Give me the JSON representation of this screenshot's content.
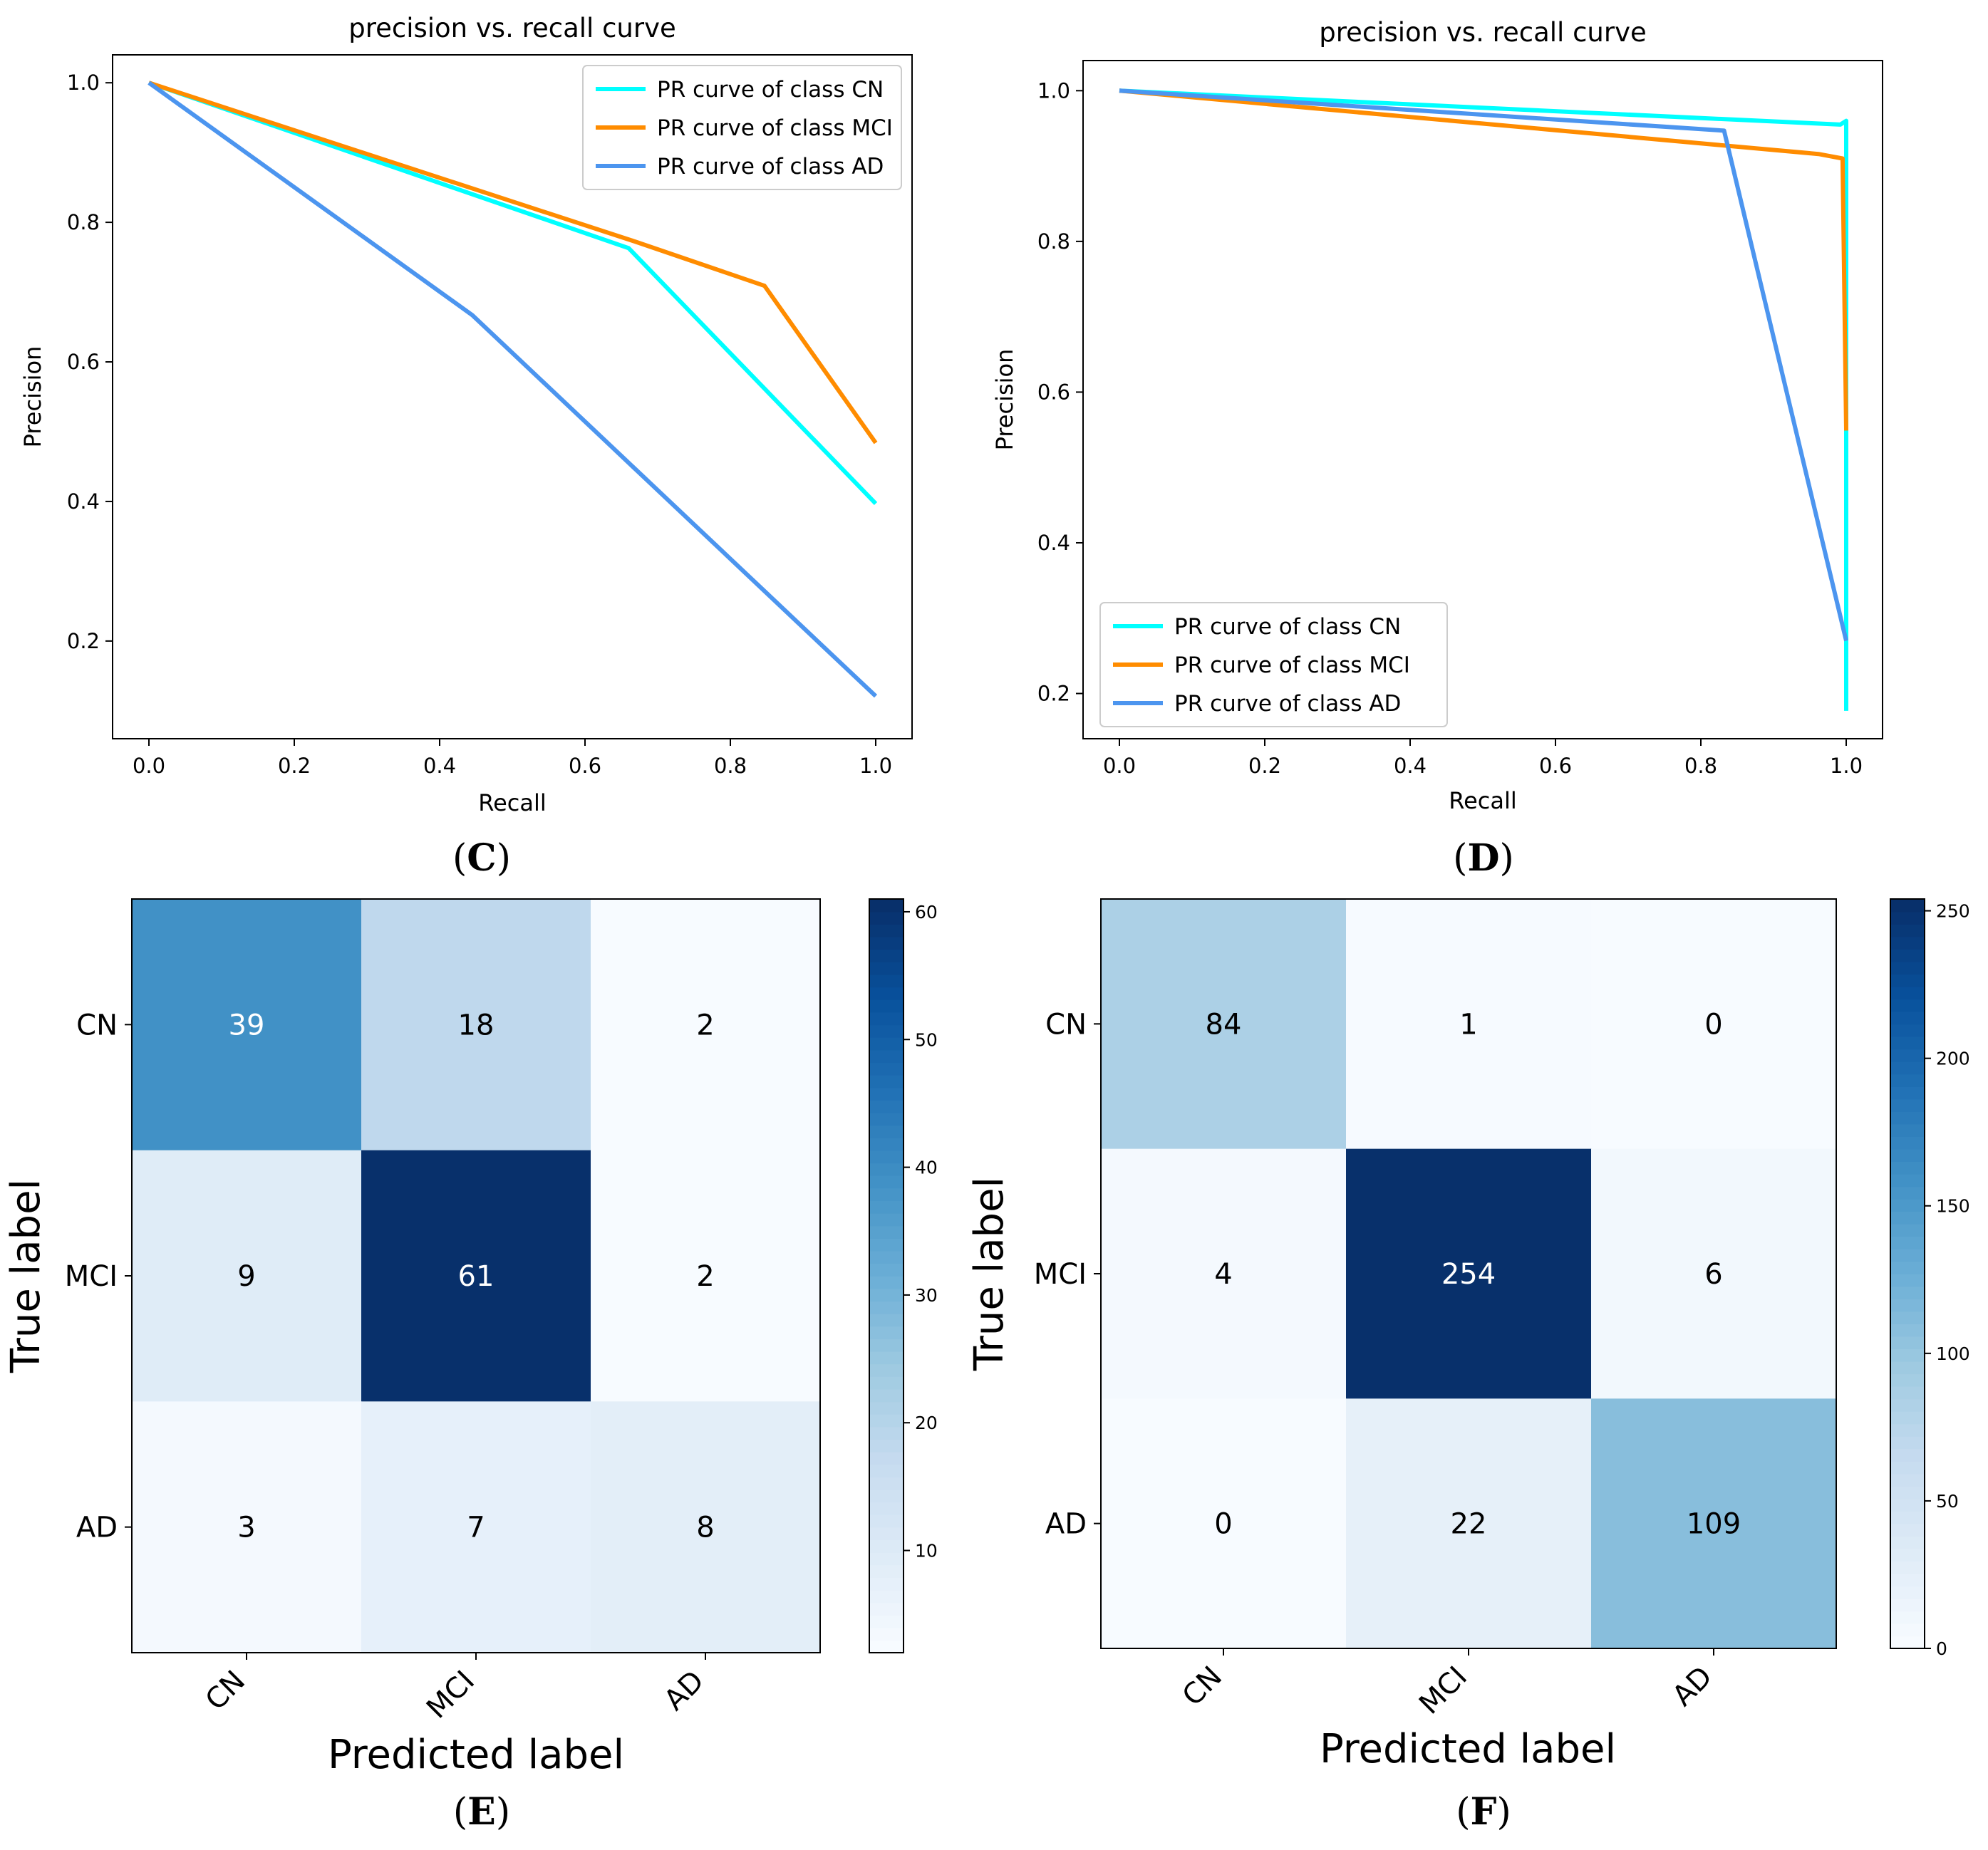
{
  "panels": {
    "C": {
      "caption_open": "(",
      "caption_letter": "C",
      "caption_close": ")"
    },
    "D": {
      "caption_open": "(",
      "caption_letter": "D",
      "caption_close": ")"
    },
    "E": {
      "caption_open": "(",
      "caption_letter": "E",
      "caption_close": ")"
    },
    "F": {
      "caption_open": "(",
      "caption_letter": "F",
      "caption_close": ")"
    }
  },
  "chart_data": [
    {
      "id": "C",
      "type": "line",
      "title": "precision vs. recall curve",
      "xlabel": "Recall",
      "ylabel": "Precision",
      "xlim": [
        -0.05,
        1.05
      ],
      "ylim": [
        0.06,
        1.04
      ],
      "xticks": [
        0.0,
        0.2,
        0.4,
        0.6,
        0.8,
        1.0
      ],
      "xtick_labels": [
        "0.0",
        "0.2",
        "0.4",
        "0.6",
        "0.8",
        "1.0"
      ],
      "yticks": [
        0.2,
        0.4,
        0.6,
        0.8,
        1.0
      ],
      "ytick_labels": [
        "0.2",
        "0.4",
        "0.6",
        "0.8",
        "1.0"
      ],
      "legend_position": "top-right",
      "series": [
        {
          "name": "PR curve of class CN",
          "color": "#00ffff",
          "x": [
            0.0,
            0.66,
            1.0
          ],
          "y": [
            1.0,
            0.763,
            0.397
          ]
        },
        {
          "name": "PR curve of class MCI",
          "color": "#ff8c00",
          "x": [
            0.0,
            0.67,
            0.847,
            1.0
          ],
          "y": [
            1.0,
            0.772,
            0.709,
            0.484
          ]
        },
        {
          "name": "PR curve of class AD",
          "color": "#4c95ef",
          "x": [
            0.0,
            0.445,
            1.0
          ],
          "y": [
            1.0,
            0.667,
            0.121
          ]
        }
      ]
    },
    {
      "id": "D",
      "type": "line",
      "title": "precision vs. recall curve",
      "xlabel": "Recall",
      "ylabel": "Precision",
      "xlim": [
        -0.05,
        1.05
      ],
      "ylim": [
        0.14,
        1.04
      ],
      "xticks": [
        0.0,
        0.2,
        0.4,
        0.6,
        0.8,
        1.0
      ],
      "xtick_labels": [
        "0.0",
        "0.2",
        "0.4",
        "0.6",
        "0.8",
        "1.0"
      ],
      "yticks": [
        0.2,
        0.4,
        0.6,
        0.8,
        1.0
      ],
      "ytick_labels": [
        "0.2",
        "0.4",
        "0.6",
        "0.8",
        "1.0"
      ],
      "legend_position": "bottom-left",
      "series": [
        {
          "name": "PR curve of class CN",
          "color": "#00ffff",
          "x": [
            0.0,
            0.992,
            1.0,
            1.0
          ],
          "y": [
            1.0,
            0.955,
            0.96,
            0.177
          ]
        },
        {
          "name": "PR curve of class MCI",
          "color": "#ff8c00",
          "x": [
            0.0,
            0.962,
            0.995,
            1.0
          ],
          "y": [
            1.0,
            0.916,
            0.91,
            0.549
          ]
        },
        {
          "name": "PR curve of class AD",
          "color": "#4c95ef",
          "x": [
            0.0,
            0.832,
            1.0
          ],
          "y": [
            1.0,
            0.947,
            0.27
          ]
        }
      ]
    },
    {
      "id": "E",
      "type": "heatmap",
      "title": "",
      "xlabel": "Predicted label",
      "ylabel": "True label",
      "row_labels": [
        "CN",
        "MCI",
        "AD"
      ],
      "col_labels": [
        "CN",
        "MCI",
        "AD"
      ],
      "matrix": [
        [
          39,
          18,
          2
        ],
        [
          9,
          61,
          2
        ],
        [
          3,
          7,
          8
        ]
      ],
      "vmin": 2,
      "vmax": 61,
      "colorbar_ticks": [
        10,
        20,
        30,
        40,
        50,
        60
      ],
      "colorbar_tick_labels": [
        "10",
        "20",
        "30",
        "40",
        "50",
        "60"
      ],
      "colormap": "Blues"
    },
    {
      "id": "F",
      "type": "heatmap",
      "title": "",
      "xlabel": "Predicted label",
      "ylabel": "True label",
      "row_labels": [
        "CN",
        "MCI",
        "AD"
      ],
      "col_labels": [
        "CN",
        "MCI",
        "AD"
      ],
      "matrix": [
        [
          84,
          1,
          0
        ],
        [
          4,
          254,
          6
        ],
        [
          0,
          22,
          109
        ]
      ],
      "vmin": 0,
      "vmax": 254,
      "colorbar_ticks": [
        0,
        50,
        100,
        150,
        200,
        250
      ],
      "colorbar_tick_labels": [
        "0",
        "50",
        "100",
        "150",
        "200",
        "250"
      ],
      "colormap": "Blues"
    }
  ]
}
